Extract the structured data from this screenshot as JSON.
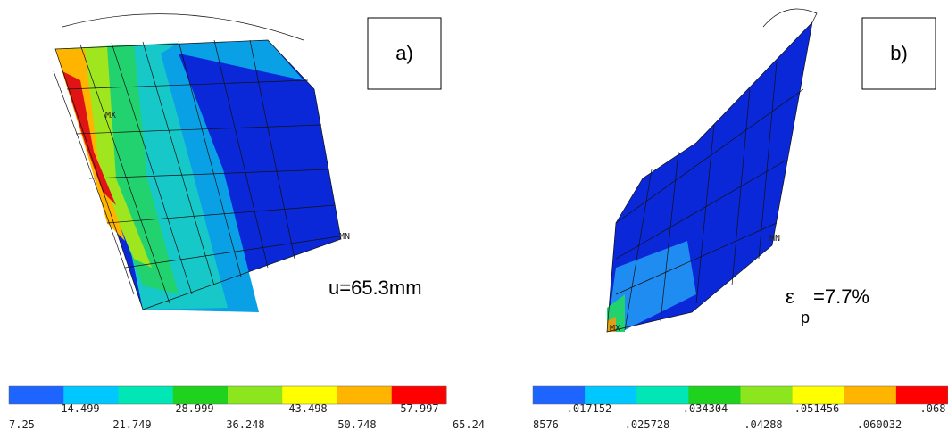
{
  "panels": [
    {
      "label": "a)",
      "annotation": "u=65.3mm",
      "max_marker": "MX",
      "min_marker": "MN",
      "legend": {
        "labels": [
          "7.25",
          "14.499",
          "21.749",
          "28.999",
          "36.248",
          "43.498",
          "50.748",
          "57.997",
          "65.24"
        ],
        "colors": [
          "#1e64ff",
          "#00c8ff",
          "#00e6b4",
          "#1ed21e",
          "#8ce61e",
          "#ffff00",
          "#ffb400",
          "#ff0000"
        ]
      }
    },
    {
      "label": "b)",
      "annotation_symbol": "ε",
      "annotation_subscript": "p",
      "annotation_value": "=7.7%",
      "max_marker": "MX",
      "min_marker": "MN",
      "legend": {
        "labels": [
          "8576",
          ".017152",
          ".025728",
          ".034304",
          ".04288",
          ".051456",
          ".060032",
          ".068"
        ],
        "colors": [
          "#1e64ff",
          "#00c8ff",
          "#00e6b4",
          "#1ed21e",
          "#8ce61e",
          "#ffff00",
          "#ffb400",
          "#ff0000"
        ]
      }
    }
  ]
}
